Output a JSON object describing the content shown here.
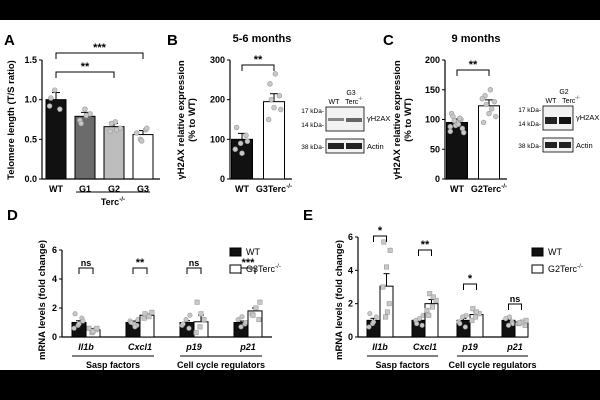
{
  "figure": {
    "panel_labels": [
      "A",
      "B",
      "C",
      "D",
      "E"
    ],
    "colors": {
      "black": "#111111",
      "g1": "#6b6b6b",
      "g2": "#bdbdbd",
      "g3": "#ffffff",
      "dots": "#9a9a9a",
      "dots_fill": "#c8c8c8"
    }
  },
  "chart_data": [
    {
      "panel": "A",
      "type": "bar",
      "ylabel": "Telomere length (T/S ratio)",
      "categories": [
        "WT",
        "G1",
        "G2",
        "G3"
      ],
      "group_label": "Terc-/-",
      "values": [
        1.0,
        0.79,
        0.66,
        0.56
      ],
      "errors": [
        0.09,
        0.05,
        0.04,
        0.05
      ],
      "points": [
        [
          0.92,
          1.12,
          0.88,
          1.02
        ],
        [
          0.74,
          0.88,
          0.82,
          0.7,
          0.8
        ],
        [
          0.6,
          0.72,
          0.64,
          0.7,
          0.62
        ],
        [
          0.5,
          0.62,
          0.58,
          0.48,
          0.64
        ]
      ],
      "ylim": [
        0,
        1.5
      ],
      "yticks": [
        0.0,
        0.5,
        1.0,
        1.5
      ],
      "significance": [
        {
          "from": 0,
          "to": 2,
          "label": "**"
        },
        {
          "from": 0,
          "to": 3,
          "label": "***"
        }
      ]
    },
    {
      "panel": "B",
      "type": "bar",
      "title": "5-6 months",
      "ylabel": "γH2AX relative expression (% to WT)",
      "categories": [
        "WT",
        "G3Terc-/-"
      ],
      "values": [
        100,
        195
      ],
      "errors": [
        15,
        20
      ],
      "points": [
        [
          75,
          90,
          110,
          130,
          65,
          95
        ],
        [
          150,
          180,
          210,
          240,
          265,
          175,
          200
        ]
      ],
      "ylim": [
        0,
        300
      ],
      "yticks": [
        0,
        100,
        200,
        300
      ],
      "significance": [
        {
          "from": 0,
          "to": 1,
          "label": "**"
        }
      ],
      "blot": {
        "header": "G3",
        "lanes": [
          "WT",
          "Terc-/-"
        ],
        "bands": [
          "γH2AX",
          "Actin"
        ],
        "markers": [
          "17 kDa-",
          "14 kDa-",
          "38 kDa-"
        ]
      }
    },
    {
      "panel": "C",
      "type": "bar",
      "title": "9 months",
      "ylabel": "γH2AX relative expression (% to WT)",
      "categories": [
        "WT",
        "G2Terc-/-"
      ],
      "values": [
        95,
        123
      ],
      "errors": [
        6,
        10
      ],
      "points": [
        [
          80,
          90,
          100,
          110,
          95,
          85,
          105,
          92,
          78,
          98,
          102,
          88
        ],
        [
          95,
          110,
          130,
          140,
          150,
          105,
          125,
          118,
          135
        ]
      ],
      "ylim": [
        0,
        200
      ],
      "yticks": [
        0,
        50,
        100,
        150,
        200
      ],
      "significance": [
        {
          "from": 0,
          "to": 1,
          "label": "**"
        }
      ],
      "blot": {
        "header": "G2",
        "lanes": [
          "WT",
          "Terc-/-"
        ],
        "bands": [
          "γH2AX",
          "Actin"
        ],
        "markers": [
          "17 kDa-",
          "14 kDa-",
          "38 kDa-"
        ]
      }
    },
    {
      "panel": "D",
      "type": "bar",
      "ylabel": "mRNA levels (fold change)",
      "categories": [
        "Il1b",
        "Cxcl1",
        "p19",
        "p21"
      ],
      "groups": [
        {
          "label": "Sasp factors",
          "from": 0,
          "to": 1
        },
        {
          "label": "Cell cycle regulators",
          "from": 2,
          "to": 3
        }
      ],
      "series": [
        {
          "name": "WT",
          "values": [
            1.0,
            1.0,
            1.0,
            1.0
          ],
          "errors": [
            0.12,
            0.1,
            0.12,
            0.1
          ],
          "points": [
            [
              0.6,
              0.8,
              1.3,
              1.6,
              0.9,
              1.1
            ],
            [
              0.8,
              1.1,
              0.9,
              1.2,
              1.0,
              0.7
            ],
            [
              0.6,
              0.8,
              1.2,
              1.5,
              0.9
            ],
            [
              0.7,
              0.9,
              1.2,
              1.4,
              1.0
            ]
          ]
        },
        {
          "name": "G3Terc-/-",
          "values": [
            0.5,
            1.5,
            1.05,
            1.8
          ],
          "errors": [
            0.08,
            0.1,
            0.45,
            0.2
          ],
          "points": [
            [
              0.3,
              0.5,
              0.6,
              0.4,
              0.6
            ],
            [
              1.3,
              1.5,
              1.7,
              1.6,
              1.4
            ],
            [
              0.3,
              0.7,
              1.2,
              2.4,
              1.6
            ],
            [
              1.2,
              1.6,
              2.0,
              2.4,
              1.5
            ]
          ]
        }
      ],
      "ylim": [
        0,
        6
      ],
      "yticks": [
        0,
        2,
        4,
        6
      ],
      "significance": [
        {
          "category": 0,
          "label": "ns"
        },
        {
          "category": 1,
          "label": "**"
        },
        {
          "category": 2,
          "label": "ns"
        },
        {
          "category": 3,
          "label": "***"
        }
      ],
      "legend": "top-right"
    },
    {
      "panel": "E",
      "type": "bar",
      "ylabel": "mRNA levels (fold change)",
      "categories": [
        "Il1b",
        "Cxcl1",
        "p19",
        "p21"
      ],
      "groups": [
        {
          "label": "Sasp factors",
          "from": 0,
          "to": 1
        },
        {
          "label": "Cell cycle regulators",
          "from": 2,
          "to": 3
        }
      ],
      "series": [
        {
          "name": "WT",
          "values": [
            1.0,
            1.0,
            1.0,
            1.0
          ],
          "errors": [
            0.12,
            0.1,
            0.12,
            0.1
          ],
          "points": [
            [
              0.6,
              0.8,
              1.2,
              1.4,
              0.9
            ],
            [
              0.7,
              1.0,
              1.1,
              1.3,
              0.8
            ],
            [
              0.6,
              0.9,
              1.2,
              1.3,
              0.8
            ],
            [
              0.7,
              0.9,
              1.1,
              1.2,
              0.8
            ]
          ]
        },
        {
          "name": "G2Terc-/-",
          "values": [
            3.05,
            2.0,
            1.35,
            0.9
          ],
          "errors": [
            0.75,
            0.25,
            0.15,
            0.06
          ],
          "points": [
            [
              1.2,
              2.0,
              3.0,
              4.2,
              5.2,
              5.7,
              1.5
            ],
            [
              1.3,
              1.8,
              2.2,
              2.6,
              2.4,
              1.6
            ],
            [
              1.0,
              1.2,
              1.4,
              1.7,
              1.5
            ],
            [
              0.7,
              0.8,
              0.9,
              1.0,
              0.85
            ]
          ]
        }
      ],
      "ylim": [
        0,
        6
      ],
      "yticks": [
        0,
        2,
        4,
        6
      ],
      "significance": [
        {
          "category": 0,
          "label": "*"
        },
        {
          "category": 1,
          "label": "**"
        },
        {
          "category": 2,
          "label": "*"
        },
        {
          "category": 3,
          "label": "ns"
        }
      ],
      "legend": "top-right"
    }
  ]
}
